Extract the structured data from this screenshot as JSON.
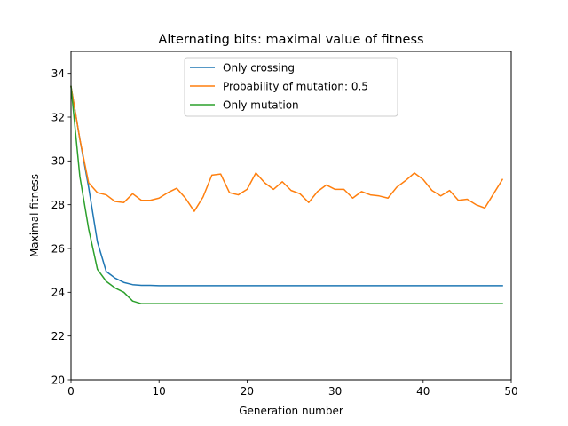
{
  "chart_data": {
    "type": "line",
    "title": "Alternating bits: maximal value of fitness",
    "xlabel": "Generation number",
    "ylabel": "Maximal fitness",
    "xlim": [
      0,
      50
    ],
    "ylim": [
      20,
      35
    ],
    "xticks": [
      0,
      10,
      20,
      30,
      40,
      50
    ],
    "yticks": [
      20,
      22,
      24,
      26,
      28,
      30,
      32,
      34
    ],
    "grid": false,
    "legend_position": "top-center",
    "x": [
      0,
      1,
      2,
      3,
      4,
      5,
      6,
      7,
      8,
      9,
      10,
      11,
      12,
      13,
      14,
      15,
      16,
      17,
      18,
      19,
      20,
      21,
      22,
      23,
      24,
      25,
      26,
      27,
      28,
      29,
      30,
      31,
      32,
      33,
      34,
      35,
      36,
      37,
      38,
      39,
      40,
      41,
      42,
      43,
      44,
      45,
      46,
      47,
      48,
      49
    ],
    "series": [
      {
        "name": "Only crossing",
        "color": "#1f77b4",
        "values": [
          33.4,
          31.0,
          28.8,
          26.3,
          24.95,
          24.65,
          24.45,
          24.35,
          24.32,
          24.32,
          24.3,
          24.3,
          24.3,
          24.3,
          24.3,
          24.3,
          24.3,
          24.3,
          24.3,
          24.3,
          24.3,
          24.3,
          24.3,
          24.3,
          24.3,
          24.3,
          24.3,
          24.3,
          24.3,
          24.3,
          24.3,
          24.3,
          24.3,
          24.3,
          24.3,
          24.3,
          24.3,
          24.3,
          24.3,
          24.3,
          24.3,
          24.3,
          24.3,
          24.3,
          24.3,
          24.3,
          24.3,
          24.3,
          24.3,
          24.3
        ]
      },
      {
        "name": "Probability of mutation: 0.5",
        "color": "#ff7f0e",
        "values": [
          33.4,
          31.0,
          29.0,
          28.55,
          28.45,
          28.15,
          28.1,
          28.5,
          28.2,
          28.2,
          28.3,
          28.55,
          28.75,
          28.3,
          27.7,
          28.35,
          29.35,
          29.4,
          28.55,
          28.45,
          28.7,
          29.45,
          29.0,
          28.7,
          29.05,
          28.65,
          28.5,
          28.1,
          28.6,
          28.9,
          28.7,
          28.7,
          28.3,
          28.6,
          28.45,
          28.4,
          28.3,
          28.8,
          29.1,
          29.45,
          29.15,
          28.65,
          28.4,
          28.65,
          28.2,
          28.25,
          28.0,
          27.85,
          28.5,
          29.15
        ]
      },
      {
        "name": "Only mutation",
        "color": "#2ca02c",
        "values": [
          33.4,
          29.3,
          26.9,
          25.05,
          24.5,
          24.2,
          24.0,
          23.6,
          23.48,
          23.48,
          23.48,
          23.48,
          23.48,
          23.48,
          23.48,
          23.48,
          23.48,
          23.48,
          23.48,
          23.48,
          23.48,
          23.48,
          23.48,
          23.48,
          23.48,
          23.48,
          23.48,
          23.48,
          23.48,
          23.48,
          23.48,
          23.48,
          23.48,
          23.48,
          23.48,
          23.48,
          23.48,
          23.48,
          23.48,
          23.48,
          23.48,
          23.48,
          23.48,
          23.48,
          23.48,
          23.48,
          23.48,
          23.48,
          23.48,
          23.48
        ]
      }
    ]
  }
}
